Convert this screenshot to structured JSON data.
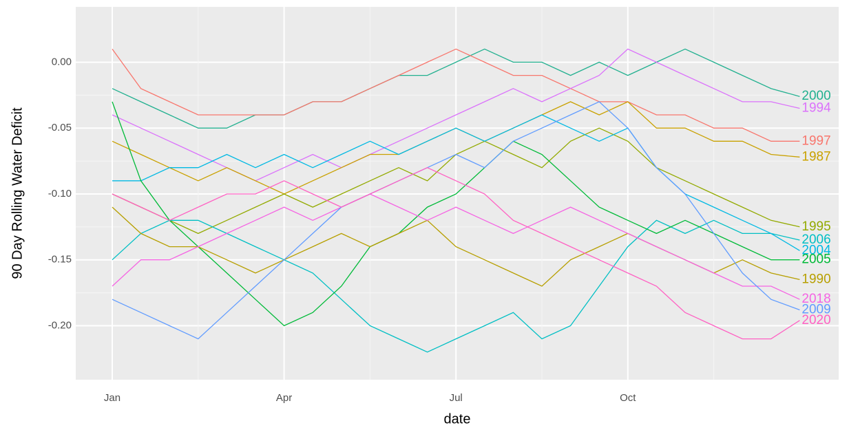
{
  "chart_data": {
    "type": "line",
    "x_label": "date",
    "y_label": "90 Day Rolling Water Deficit",
    "categories": [
      "Jan",
      null,
      null,
      null,
      null,
      null,
      "Apr",
      null,
      null,
      null,
      null,
      null,
      "Jul",
      null,
      null,
      null,
      null,
      null,
      "Oct",
      null,
      null,
      null,
      null,
      null,
      null
    ],
    "ylim": [
      -0.241,
      0.042
    ],
    "yticks": [
      {
        "value": 0,
        "label": "0.00"
      },
      {
        "value": -0.05,
        "label": "-0.05"
      },
      {
        "value": -0.1,
        "label": "-0.10"
      },
      {
        "value": -0.15,
        "label": "-0.15"
      },
      {
        "value": -0.2,
        "label": "-0.20"
      }
    ],
    "grid": true,
    "series": [
      {
        "name": "2000",
        "color": "#21b08f",
        "values": [
          -0.02,
          -0.03,
          -0.04,
          -0.05,
          -0.05,
          -0.04,
          -0.04,
          -0.03,
          -0.03,
          -0.02,
          -0.01,
          -0.01,
          0.0,
          0.01,
          0.0,
          0.0,
          -0.01,
          0.0,
          -0.01,
          0.0,
          0.01,
          0.0,
          -0.01,
          -0.02,
          -0.026
        ]
      },
      {
        "name": "1997",
        "color": "#f8766d",
        "values": [
          0.01,
          -0.02,
          -0.03,
          -0.04,
          -0.04,
          -0.04,
          -0.04,
          -0.03,
          -0.03,
          -0.02,
          -0.01,
          0.0,
          0.01,
          0.0,
          -0.01,
          -0.01,
          -0.02,
          -0.03,
          -0.03,
          -0.04,
          -0.04,
          -0.05,
          -0.05,
          -0.06,
          -0.06
        ]
      },
      {
        "name": "1994",
        "color": "#db72fb",
        "values": [
          -0.04,
          -0.05,
          -0.06,
          -0.07,
          -0.08,
          -0.09,
          -0.08,
          -0.07,
          -0.08,
          -0.07,
          -0.06,
          -0.05,
          -0.04,
          -0.03,
          -0.02,
          -0.03,
          -0.02,
          -0.01,
          0.01,
          0.0,
          -0.01,
          -0.02,
          -0.03,
          -0.03,
          -0.035
        ]
      },
      {
        "name": "1987",
        "color": "#c9a100",
        "values": [
          -0.06,
          -0.07,
          -0.08,
          -0.09,
          -0.08,
          -0.09,
          -0.1,
          -0.09,
          -0.08,
          -0.07,
          -0.07,
          -0.06,
          -0.05,
          -0.06,
          -0.05,
          -0.04,
          -0.03,
          -0.04,
          -0.03,
          -0.05,
          -0.05,
          -0.06,
          -0.06,
          -0.07,
          -0.072
        ]
      },
      {
        "name": "1995",
        "color": "#93aa00",
        "values": [
          -0.1,
          -0.11,
          -0.12,
          -0.13,
          -0.12,
          -0.11,
          -0.1,
          -0.11,
          -0.1,
          -0.09,
          -0.08,
          -0.09,
          -0.07,
          -0.06,
          -0.07,
          -0.08,
          -0.06,
          -0.05,
          -0.06,
          -0.08,
          -0.09,
          -0.1,
          -0.11,
          -0.12,
          -0.125
        ]
      },
      {
        "name": "2006",
        "color": "#00bfc4",
        "values": [
          -0.15,
          -0.13,
          -0.12,
          -0.12,
          -0.13,
          -0.14,
          -0.15,
          -0.16,
          -0.18,
          -0.2,
          -0.21,
          -0.22,
          -0.21,
          -0.2,
          -0.19,
          -0.21,
          -0.2,
          -0.17,
          -0.14,
          -0.12,
          -0.13,
          -0.12,
          -0.13,
          -0.13,
          -0.135
        ]
      },
      {
        "name": "2004",
        "color": "#00b9e3",
        "values": [
          -0.09,
          -0.09,
          -0.08,
          -0.08,
          -0.07,
          -0.08,
          -0.07,
          -0.08,
          -0.07,
          -0.06,
          -0.07,
          -0.06,
          -0.05,
          -0.06,
          -0.05,
          -0.04,
          -0.05,
          -0.06,
          -0.05,
          -0.08,
          -0.1,
          -0.11,
          -0.12,
          -0.13,
          -0.143
        ]
      },
      {
        "name": "2005",
        "color": "#00ba38",
        "values": [
          -0.03,
          -0.09,
          -0.12,
          -0.14,
          -0.16,
          -0.18,
          -0.2,
          -0.19,
          -0.17,
          -0.14,
          -0.13,
          -0.11,
          -0.1,
          -0.08,
          -0.06,
          -0.07,
          -0.09,
          -0.11,
          -0.12,
          -0.13,
          -0.12,
          -0.13,
          -0.14,
          -0.15,
          -0.15
        ]
      },
      {
        "name": "1990",
        "color": "#b79f00",
        "values": [
          -0.11,
          -0.13,
          -0.14,
          -0.14,
          -0.15,
          -0.16,
          -0.15,
          -0.14,
          -0.13,
          -0.14,
          -0.13,
          -0.12,
          -0.14,
          -0.15,
          -0.16,
          -0.17,
          -0.15,
          -0.14,
          -0.13,
          -0.14,
          -0.15,
          -0.16,
          -0.15,
          -0.16,
          -0.165
        ]
      },
      {
        "name": "2018",
        "color": "#f564e3",
        "values": [
          -0.17,
          -0.15,
          -0.15,
          -0.14,
          -0.13,
          -0.12,
          -0.11,
          -0.12,
          -0.11,
          -0.1,
          -0.11,
          -0.12,
          -0.11,
          -0.12,
          -0.13,
          -0.12,
          -0.11,
          -0.12,
          -0.13,
          -0.14,
          -0.15,
          -0.16,
          -0.17,
          -0.17,
          -0.18
        ]
      },
      {
        "name": "2009",
        "color": "#619cff",
        "values": [
          -0.18,
          -0.19,
          -0.2,
          -0.21,
          -0.19,
          -0.17,
          -0.15,
          -0.13,
          -0.11,
          -0.1,
          -0.09,
          -0.08,
          -0.07,
          -0.08,
          -0.06,
          -0.05,
          -0.04,
          -0.03,
          -0.05,
          -0.08,
          -0.1,
          -0.13,
          -0.16,
          -0.18,
          -0.188
        ]
      },
      {
        "name": "2020",
        "color": "#ff61c3",
        "values": [
          -0.1,
          -0.11,
          -0.12,
          -0.11,
          -0.1,
          -0.1,
          -0.09,
          -0.1,
          -0.11,
          -0.1,
          -0.09,
          -0.08,
          -0.09,
          -0.1,
          -0.12,
          -0.13,
          -0.14,
          -0.15,
          -0.16,
          -0.17,
          -0.19,
          -0.2,
          -0.21,
          -0.21,
          -0.196
        ]
      }
    ]
  }
}
